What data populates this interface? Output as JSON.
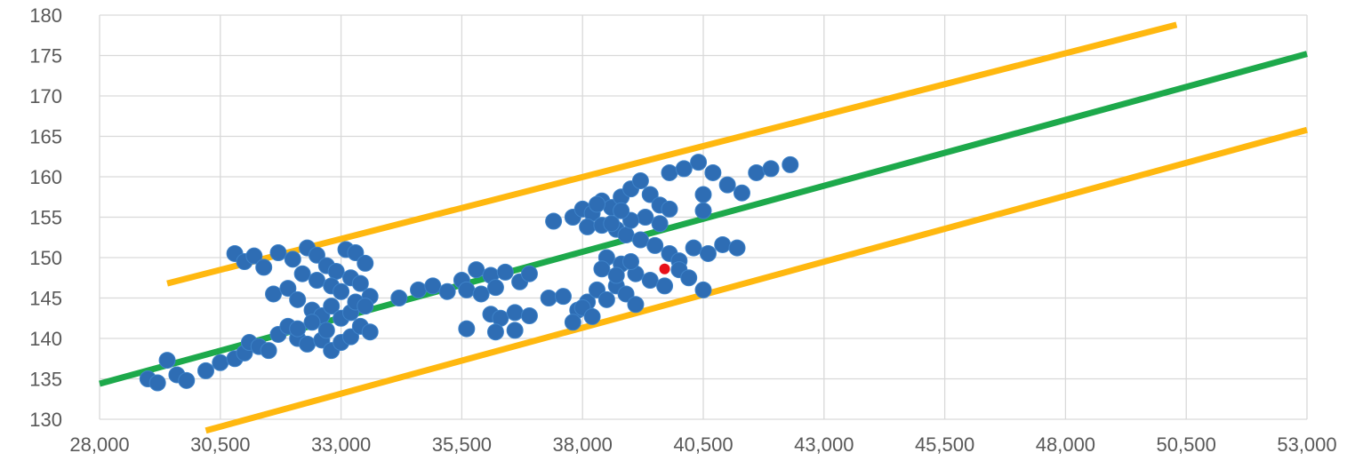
{
  "chart_data": {
    "type": "scatter",
    "title": "",
    "xlabel": "",
    "ylabel": "",
    "xlim": [
      28000,
      53000
    ],
    "ylim": [
      130,
      180
    ],
    "x_ticks": [
      28000,
      30500,
      33000,
      35500,
      38000,
      40500,
      43000,
      45500,
      48000,
      50500,
      53000
    ],
    "x_tick_labels": [
      "28,000",
      "30,500",
      "33,000",
      "35,500",
      "38,000",
      "40,500",
      "43,000",
      "45,500",
      "48,000",
      "50,500",
      "53,000"
    ],
    "y_ticks": [
      130,
      135,
      140,
      145,
      150,
      155,
      160,
      165,
      170,
      175,
      180
    ],
    "y_tick_labels": [
      "130",
      "135",
      "140",
      "145",
      "150",
      "155",
      "160",
      "165",
      "170",
      "175",
      "180"
    ],
    "grid": true,
    "legend": "none",
    "colors": {
      "points": "#2E6DB4",
      "highlight": "#E8101A",
      "fit_line": "#1DA94B",
      "band_lines": "#FFB80F",
      "grid": "#D9D9D9",
      "text": "#595959"
    },
    "series": [
      {
        "points": [
          [
            29000,
            135.0
          ],
          [
            29200,
            134.5
          ],
          [
            29400,
            137.3
          ],
          [
            29600,
            135.5
          ],
          [
            29800,
            134.8
          ],
          [
            30200,
            136.0
          ],
          [
            30500,
            137.0
          ],
          [
            30800,
            137.5
          ],
          [
            31000,
            138.2
          ],
          [
            31100,
            139.5
          ],
          [
            31300,
            139.0
          ],
          [
            31500,
            138.5
          ],
          [
            31700,
            140.5
          ],
          [
            31900,
            141.5
          ],
          [
            32100,
            140.0
          ],
          [
            32300,
            139.3
          ],
          [
            32600,
            139.8
          ],
          [
            32800,
            138.5
          ],
          [
            33000,
            139.5
          ],
          [
            33200,
            140.2
          ],
          [
            30800,
            150.5
          ],
          [
            31000,
            149.5
          ],
          [
            31200,
            150.2
          ],
          [
            31400,
            148.8
          ],
          [
            31700,
            150.6
          ],
          [
            32000,
            149.8
          ],
          [
            32300,
            151.2
          ],
          [
            32500,
            150.3
          ],
          [
            32700,
            149.0
          ],
          [
            32900,
            148.3
          ],
          [
            33100,
            151.0
          ],
          [
            33300,
            150.6
          ],
          [
            33500,
            149.3
          ],
          [
            32200,
            148.0
          ],
          [
            32500,
            147.2
          ],
          [
            32800,
            146.5
          ],
          [
            33000,
            145.8
          ],
          [
            33200,
            147.5
          ],
          [
            33400,
            146.8
          ],
          [
            33600,
            145.2
          ],
          [
            31600,
            145.5
          ],
          [
            31900,
            146.2
          ],
          [
            32100,
            144.8
          ],
          [
            32400,
            143.5
          ],
          [
            32600,
            142.8
          ],
          [
            32800,
            144.0
          ],
          [
            33000,
            142.5
          ],
          [
            33200,
            143.2
          ],
          [
            33400,
            141.5
          ],
          [
            33600,
            140.8
          ],
          [
            32100,
            141.2
          ],
          [
            32400,
            142.0
          ],
          [
            32700,
            141.0
          ],
          [
            33300,
            144.5
          ],
          [
            33500,
            144.0
          ],
          [
            34200,
            145.0
          ],
          [
            34600,
            146.0
          ],
          [
            34900,
            146.5
          ],
          [
            35200,
            145.8
          ],
          [
            35500,
            147.2
          ],
          [
            35800,
            148.5
          ],
          [
            36100,
            147.8
          ],
          [
            36400,
            148.2
          ],
          [
            36700,
            147.0
          ],
          [
            36900,
            148.0
          ],
          [
            35600,
            146.0
          ],
          [
            35900,
            145.5
          ],
          [
            36200,
            146.3
          ],
          [
            35600,
            141.2
          ],
          [
            36100,
            143.0
          ],
          [
            36300,
            142.5
          ],
          [
            36600,
            143.2
          ],
          [
            36900,
            142.8
          ],
          [
            36200,
            140.8
          ],
          [
            36600,
            141.0
          ],
          [
            37300,
            145.0
          ],
          [
            37600,
            145.2
          ],
          [
            37900,
            143.5
          ],
          [
            38100,
            144.5
          ],
          [
            38300,
            146.0
          ],
          [
            38500,
            144.8
          ],
          [
            38700,
            146.5
          ],
          [
            38900,
            145.5
          ],
          [
            39100,
            144.2
          ],
          [
            37800,
            142.0
          ],
          [
            38000,
            143.8
          ],
          [
            38200,
            142.7
          ],
          [
            37400,
            154.5
          ],
          [
            37800,
            155.0
          ],
          [
            38000,
            156.0
          ],
          [
            38200,
            155.5
          ],
          [
            38400,
            157.0
          ],
          [
            38600,
            156.2
          ],
          [
            38800,
            157.5
          ],
          [
            39000,
            158.5
          ],
          [
            39200,
            159.5
          ],
          [
            39400,
            157.8
          ],
          [
            39600,
            156.5
          ],
          [
            39800,
            160.5
          ],
          [
            40100,
            161.0
          ],
          [
            40400,
            161.8
          ],
          [
            40700,
            160.5
          ],
          [
            41000,
            159.0
          ],
          [
            41300,
            158.0
          ],
          [
            41600,
            160.5
          ],
          [
            41900,
            161.0
          ],
          [
            42300,
            161.5
          ],
          [
            38100,
            153.8
          ],
          [
            38400,
            154.0
          ],
          [
            38700,
            153.5
          ],
          [
            38900,
            152.8
          ],
          [
            39200,
            152.2
          ],
          [
            39500,
            151.5
          ],
          [
            39800,
            150.5
          ],
          [
            40000,
            149.6
          ],
          [
            40300,
            151.2
          ],
          [
            40600,
            150.5
          ],
          [
            40900,
            151.6
          ],
          [
            41200,
            151.2
          ],
          [
            38500,
            150.0
          ],
          [
            38800,
            149.2
          ],
          [
            39100,
            148.0
          ],
          [
            39400,
            147.2
          ],
          [
            39700,
            146.5
          ],
          [
            40000,
            148.5
          ],
          [
            40200,
            147.5
          ],
          [
            40500,
            146.0
          ],
          [
            38400,
            148.6
          ],
          [
            38700,
            147.8
          ],
          [
            39000,
            149.5
          ],
          [
            40500,
            155.8
          ],
          [
            40500,
            157.8
          ],
          [
            39800,
            156.0
          ],
          [
            39600,
            154.2
          ],
          [
            39300,
            155.0
          ],
          [
            39000,
            154.6
          ],
          [
            38800,
            155.8
          ],
          [
            38600,
            154.2
          ],
          [
            38300,
            156.6
          ]
        ]
      },
      {
        "points": [
          [
            39700,
            148.6
          ]
        ]
      }
    ],
    "lines": [
      {
        "x": [
          28000,
          53000
        ],
        "y": [
          134.4,
          175.2
        ]
      },
      {
        "x": [
          29400,
          50300
        ],
        "y": [
          146.8,
          178.8
        ]
      },
      {
        "x": [
          30200,
          53000
        ],
        "y": [
          128.6,
          165.8
        ]
      }
    ]
  }
}
